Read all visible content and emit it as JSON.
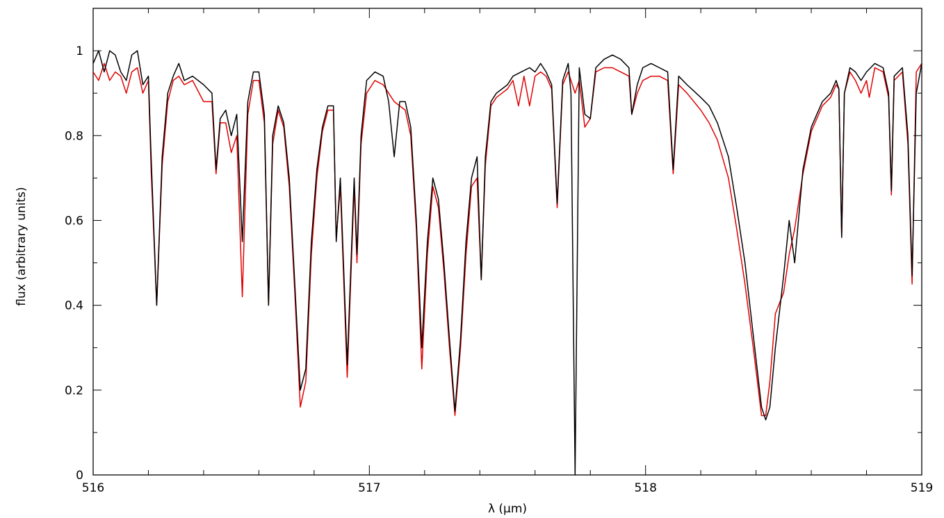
{
  "chart_data": {
    "type": "line",
    "title": "",
    "xlabel": "λ (μm)",
    "ylabel": "flux (arbitrary units)",
    "xlim": [
      516,
      519
    ],
    "ylim": [
      0,
      1.1
    ],
    "x_ticks": [
      516,
      517,
      518,
      519
    ],
    "y_ticks": [
      0,
      0.2,
      0.4,
      0.6,
      0.8,
      1
    ],
    "y_tick_labels": [
      "0",
      "0.2",
      "0.4",
      "0.6",
      "0.8",
      "1"
    ],
    "x_tick_labels": [
      "516",
      "517",
      "518",
      "519"
    ],
    "grid": false,
    "legend": "none",
    "series": [
      {
        "color": "#000000",
        "points": [
          [
            516.0,
            0.97
          ],
          [
            516.02,
            1.0
          ],
          [
            516.04,
            0.95
          ],
          [
            516.06,
            1.0
          ],
          [
            516.08,
            0.99
          ],
          [
            516.1,
            0.95
          ],
          [
            516.12,
            0.93
          ],
          [
            516.14,
            0.99
          ],
          [
            516.16,
            1.0
          ],
          [
            516.18,
            0.92
          ],
          [
            516.2,
            0.94
          ],
          [
            516.21,
            0.75
          ],
          [
            516.23,
            0.4
          ],
          [
            516.25,
            0.75
          ],
          [
            516.27,
            0.9
          ],
          [
            516.29,
            0.94
          ],
          [
            516.31,
            0.97
          ],
          [
            516.33,
            0.93
          ],
          [
            516.36,
            0.94
          ],
          [
            516.4,
            0.92
          ],
          [
            516.43,
            0.9
          ],
          [
            516.445,
            0.72
          ],
          [
            516.46,
            0.84
          ],
          [
            516.48,
            0.86
          ],
          [
            516.5,
            0.8
          ],
          [
            516.52,
            0.85
          ],
          [
            516.54,
            0.55
          ],
          [
            516.56,
            0.88
          ],
          [
            516.58,
            0.95
          ],
          [
            516.6,
            0.95
          ],
          [
            516.62,
            0.85
          ],
          [
            516.635,
            0.4
          ],
          [
            516.65,
            0.8
          ],
          [
            516.67,
            0.87
          ],
          [
            516.69,
            0.83
          ],
          [
            516.71,
            0.7
          ],
          [
            516.73,
            0.45
          ],
          [
            516.75,
            0.2
          ],
          [
            516.77,
            0.25
          ],
          [
            516.79,
            0.55
          ],
          [
            516.81,
            0.72
          ],
          [
            516.83,
            0.82
          ],
          [
            516.85,
            0.87
          ],
          [
            516.87,
            0.87
          ],
          [
            516.88,
            0.55
          ],
          [
            516.895,
            0.7
          ],
          [
            516.92,
            0.26
          ],
          [
            516.945,
            0.7
          ],
          [
            516.955,
            0.52
          ],
          [
            516.97,
            0.8
          ],
          [
            516.99,
            0.93
          ],
          [
            517.02,
            0.95
          ],
          [
            517.05,
            0.94
          ],
          [
            517.07,
            0.88
          ],
          [
            517.09,
            0.75
          ],
          [
            517.11,
            0.88
          ],
          [
            517.13,
            0.88
          ],
          [
            517.15,
            0.82
          ],
          [
            517.17,
            0.6
          ],
          [
            517.19,
            0.3
          ],
          [
            517.21,
            0.55
          ],
          [
            517.23,
            0.7
          ],
          [
            517.25,
            0.65
          ],
          [
            517.27,
            0.5
          ],
          [
            517.29,
            0.32
          ],
          [
            517.31,
            0.15
          ],
          [
            517.33,
            0.32
          ],
          [
            517.35,
            0.55
          ],
          [
            517.37,
            0.7
          ],
          [
            517.39,
            0.75
          ],
          [
            517.405,
            0.46
          ],
          [
            517.42,
            0.75
          ],
          [
            517.44,
            0.88
          ],
          [
            517.46,
            0.9
          ],
          [
            517.48,
            0.91
          ],
          [
            517.5,
            0.92
          ],
          [
            517.52,
            0.94
          ],
          [
            517.55,
            0.95
          ],
          [
            517.58,
            0.96
          ],
          [
            517.6,
            0.95
          ],
          [
            517.62,
            0.97
          ],
          [
            517.64,
            0.95
          ],
          [
            517.66,
            0.92
          ],
          [
            517.68,
            0.64
          ],
          [
            517.7,
            0.93
          ],
          [
            517.72,
            0.97
          ],
          [
            517.73,
            0.9
          ],
          [
            517.745,
            0.0
          ],
          [
            517.76,
            0.96
          ],
          [
            517.78,
            0.85
          ],
          [
            517.8,
            0.84
          ],
          [
            517.82,
            0.96
          ],
          [
            517.85,
            0.98
          ],
          [
            517.88,
            0.99
          ],
          [
            517.91,
            0.98
          ],
          [
            517.94,
            0.96
          ],
          [
            517.95,
            0.85
          ],
          [
            517.97,
            0.92
          ],
          [
            517.99,
            0.96
          ],
          [
            518.02,
            0.97
          ],
          [
            518.05,
            0.96
          ],
          [
            518.08,
            0.95
          ],
          [
            518.1,
            0.72
          ],
          [
            518.12,
            0.94
          ],
          [
            518.15,
            0.92
          ],
          [
            518.2,
            0.89
          ],
          [
            518.23,
            0.87
          ],
          [
            518.26,
            0.83
          ],
          [
            518.3,
            0.75
          ],
          [
            518.33,
            0.63
          ],
          [
            518.36,
            0.5
          ],
          [
            518.39,
            0.33
          ],
          [
            518.42,
            0.16
          ],
          [
            518.435,
            0.13
          ],
          [
            518.45,
            0.16
          ],
          [
            518.47,
            0.3
          ],
          [
            518.5,
            0.47
          ],
          [
            518.52,
            0.6
          ],
          [
            518.54,
            0.5
          ],
          [
            518.57,
            0.72
          ],
          [
            518.6,
            0.82
          ],
          [
            518.64,
            0.88
          ],
          [
            518.67,
            0.9
          ],
          [
            518.69,
            0.93
          ],
          [
            518.7,
            0.91
          ],
          [
            518.71,
            0.56
          ],
          [
            518.72,
            0.9
          ],
          [
            518.74,
            0.96
          ],
          [
            518.76,
            0.95
          ],
          [
            518.78,
            0.93
          ],
          [
            518.8,
            0.95
          ],
          [
            518.83,
            0.97
          ],
          [
            518.86,
            0.96
          ],
          [
            518.88,
            0.9
          ],
          [
            518.89,
            0.67
          ],
          [
            518.9,
            0.94
          ],
          [
            518.93,
            0.96
          ],
          [
            518.95,
            0.8
          ],
          [
            518.965,
            0.47
          ],
          [
            518.98,
            0.9
          ],
          [
            519.0,
            0.97
          ]
        ]
      },
      {
        "color": "#e00000",
        "points": [
          [
            516.0,
            0.95
          ],
          [
            516.02,
            0.93
          ],
          [
            516.04,
            0.97
          ],
          [
            516.06,
            0.93
          ],
          [
            516.08,
            0.95
          ],
          [
            516.1,
            0.94
          ],
          [
            516.12,
            0.9
          ],
          [
            516.14,
            0.95
          ],
          [
            516.16,
            0.96
          ],
          [
            516.18,
            0.9
          ],
          [
            516.2,
            0.93
          ],
          [
            516.21,
            0.72
          ],
          [
            516.23,
            0.4
          ],
          [
            516.25,
            0.73
          ],
          [
            516.27,
            0.88
          ],
          [
            516.29,
            0.93
          ],
          [
            516.31,
            0.94
          ],
          [
            516.33,
            0.92
          ],
          [
            516.36,
            0.93
          ],
          [
            516.4,
            0.88
          ],
          [
            516.43,
            0.88
          ],
          [
            516.445,
            0.71
          ],
          [
            516.46,
            0.83
          ],
          [
            516.48,
            0.83
          ],
          [
            516.5,
            0.76
          ],
          [
            516.52,
            0.8
          ],
          [
            516.54,
            0.42
          ],
          [
            516.56,
            0.85
          ],
          [
            516.58,
            0.93
          ],
          [
            516.6,
            0.93
          ],
          [
            516.62,
            0.83
          ],
          [
            516.635,
            0.4
          ],
          [
            516.65,
            0.78
          ],
          [
            516.67,
            0.86
          ],
          [
            516.69,
            0.82
          ],
          [
            516.71,
            0.68
          ],
          [
            516.73,
            0.43
          ],
          [
            516.75,
            0.16
          ],
          [
            516.77,
            0.22
          ],
          [
            516.79,
            0.52
          ],
          [
            516.81,
            0.7
          ],
          [
            516.83,
            0.81
          ],
          [
            516.85,
            0.86
          ],
          [
            516.87,
            0.86
          ],
          [
            516.88,
            0.56
          ],
          [
            516.895,
            0.68
          ],
          [
            516.92,
            0.23
          ],
          [
            516.945,
            0.68
          ],
          [
            516.955,
            0.5
          ],
          [
            516.97,
            0.78
          ],
          [
            516.99,
            0.9
          ],
          [
            517.02,
            0.93
          ],
          [
            517.05,
            0.92
          ],
          [
            517.07,
            0.9
          ],
          [
            517.09,
            0.88
          ],
          [
            517.11,
            0.87
          ],
          [
            517.13,
            0.86
          ],
          [
            517.15,
            0.8
          ],
          [
            517.17,
            0.58
          ],
          [
            517.19,
            0.25
          ],
          [
            517.21,
            0.52
          ],
          [
            517.23,
            0.68
          ],
          [
            517.25,
            0.63
          ],
          [
            517.27,
            0.48
          ],
          [
            517.29,
            0.3
          ],
          [
            517.31,
            0.14
          ],
          [
            517.33,
            0.3
          ],
          [
            517.35,
            0.52
          ],
          [
            517.37,
            0.68
          ],
          [
            517.39,
            0.7
          ],
          [
            517.405,
            0.46
          ],
          [
            517.42,
            0.73
          ],
          [
            517.44,
            0.87
          ],
          [
            517.46,
            0.89
          ],
          [
            517.48,
            0.9
          ],
          [
            517.5,
            0.91
          ],
          [
            517.52,
            0.93
          ],
          [
            517.54,
            0.87
          ],
          [
            517.56,
            0.94
          ],
          [
            517.58,
            0.87
          ],
          [
            517.6,
            0.94
          ],
          [
            517.62,
            0.95
          ],
          [
            517.64,
            0.94
          ],
          [
            517.66,
            0.91
          ],
          [
            517.68,
            0.63
          ],
          [
            517.7,
            0.92
          ],
          [
            517.72,
            0.95
          ],
          [
            517.745,
            0.9
          ],
          [
            517.76,
            0.93
          ],
          [
            517.78,
            0.82
          ],
          [
            517.8,
            0.84
          ],
          [
            517.82,
            0.95
          ],
          [
            517.85,
            0.96
          ],
          [
            517.88,
            0.96
          ],
          [
            517.91,
            0.95
          ],
          [
            517.94,
            0.94
          ],
          [
            517.95,
            0.85
          ],
          [
            517.97,
            0.9
          ],
          [
            517.99,
            0.93
          ],
          [
            518.02,
            0.94
          ],
          [
            518.05,
            0.94
          ],
          [
            518.08,
            0.93
          ],
          [
            518.1,
            0.71
          ],
          [
            518.12,
            0.92
          ],
          [
            518.15,
            0.9
          ],
          [
            518.2,
            0.86
          ],
          [
            518.23,
            0.83
          ],
          [
            518.26,
            0.79
          ],
          [
            518.3,
            0.7
          ],
          [
            518.33,
            0.58
          ],
          [
            518.36,
            0.45
          ],
          [
            518.39,
            0.3
          ],
          [
            518.42,
            0.14
          ],
          [
            518.435,
            0.14
          ],
          [
            518.45,
            0.22
          ],
          [
            518.47,
            0.38
          ],
          [
            518.5,
            0.43
          ],
          [
            518.52,
            0.52
          ],
          [
            518.54,
            0.58
          ],
          [
            518.57,
            0.71
          ],
          [
            518.6,
            0.81
          ],
          [
            518.64,
            0.87
          ],
          [
            518.67,
            0.89
          ],
          [
            518.69,
            0.92
          ],
          [
            518.7,
            0.91
          ],
          [
            518.71,
            0.56
          ],
          [
            518.72,
            0.9
          ],
          [
            518.74,
            0.95
          ],
          [
            518.76,
            0.93
          ],
          [
            518.78,
            0.9
          ],
          [
            518.8,
            0.93
          ],
          [
            518.81,
            0.89
          ],
          [
            518.83,
            0.96
          ],
          [
            518.86,
            0.95
          ],
          [
            518.88,
            0.89
          ],
          [
            518.89,
            0.66
          ],
          [
            518.9,
            0.93
          ],
          [
            518.93,
            0.95
          ],
          [
            518.95,
            0.78
          ],
          [
            518.965,
            0.45
          ],
          [
            518.98,
            0.95
          ],
          [
            519.0,
            0.97
          ]
        ]
      }
    ]
  }
}
